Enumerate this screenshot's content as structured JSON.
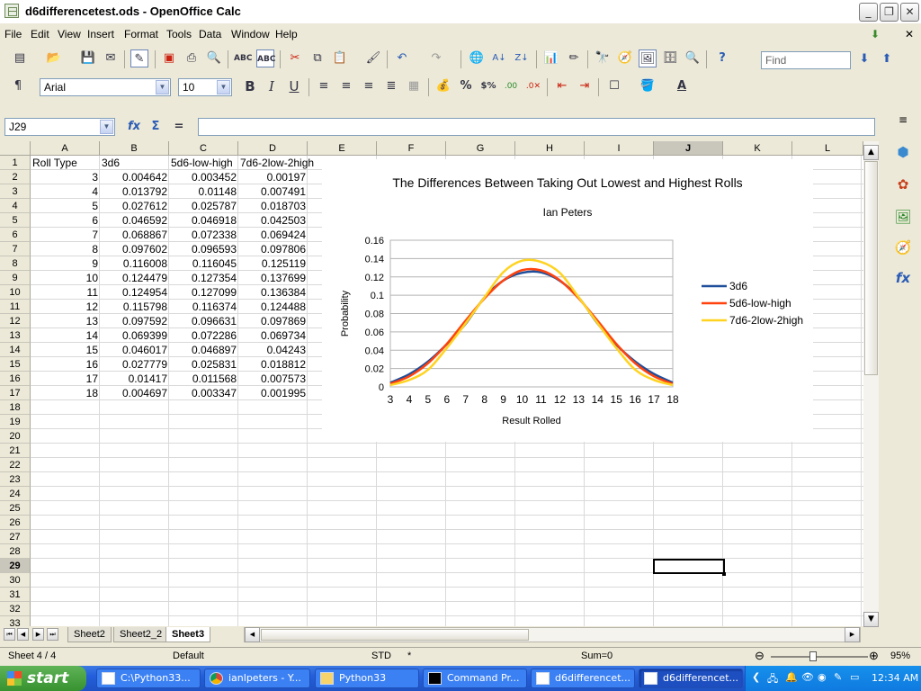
{
  "window": {
    "title": "d6differencetest.ods - OpenOffice Calc",
    "minimize": "_",
    "maximize": "❐",
    "close": "✕"
  },
  "menu": [
    "File",
    "Edit",
    "View",
    "Insert",
    "Format",
    "Tools",
    "Data",
    "Window",
    "Help"
  ],
  "toolbar": {
    "find_placeholder": "Find"
  },
  "formatting": {
    "font": "Arial",
    "size": "10"
  },
  "formula_bar": {
    "namebox": "J29",
    "fx": "fx",
    "sum": "Σ",
    "eq": "=",
    "value": ""
  },
  "columns": [
    "A",
    "B",
    "C",
    "D",
    "E",
    "F",
    "G",
    "H",
    "I",
    "J",
    "K",
    "L"
  ],
  "rows": [
    "1",
    "2",
    "3",
    "4",
    "5",
    "6",
    "7",
    "8",
    "9",
    "10",
    "11",
    "12",
    "13",
    "14",
    "15",
    "16",
    "17",
    "18",
    "19",
    "20",
    "21",
    "22",
    "23",
    "24",
    "25",
    "26",
    "27",
    "28",
    "29",
    "30",
    "31",
    "32",
    "33"
  ],
  "table": {
    "headers": [
      "Roll Type",
      "3d6",
      "5d6-low-high",
      "7d6-2low-2high"
    ],
    "rows": [
      [
        "3",
        "0.004642",
        "0.003452",
        "0.00197"
      ],
      [
        "4",
        "0.013792",
        "0.01148",
        "0.007491"
      ],
      [
        "5",
        "0.027612",
        "0.025787",
        "0.018703"
      ],
      [
        "6",
        "0.046592",
        "0.046918",
        "0.042503"
      ],
      [
        "7",
        "0.068867",
        "0.072338",
        "0.069424"
      ],
      [
        "8",
        "0.097602",
        "0.096593",
        "0.097806"
      ],
      [
        "9",
        "0.116008",
        "0.116045",
        "0.125119"
      ],
      [
        "10",
        "0.124479",
        "0.127354",
        "0.137699"
      ],
      [
        "11",
        "0.124954",
        "0.127099",
        "0.136384"
      ],
      [
        "12",
        "0.115798",
        "0.116374",
        "0.124488"
      ],
      [
        "13",
        "0.097592",
        "0.096631",
        "0.097869"
      ],
      [
        "14",
        "0.069399",
        "0.072286",
        "0.069734"
      ],
      [
        "15",
        "0.046017",
        "0.046897",
        "0.04243"
      ],
      [
        "16",
        "0.027779",
        "0.025831",
        "0.018812"
      ],
      [
        "17",
        "0.01417",
        "0.011568",
        "0.007573"
      ],
      [
        "18",
        "0.004697",
        "0.003347",
        "0.001995"
      ]
    ]
  },
  "chart_data": {
    "type": "line",
    "title": "The Differences Between Taking Out Lowest and Highest Rolls",
    "subtitle": "Ian Peters",
    "xlabel": "Result Rolled",
    "ylabel": "Probability",
    "x": [
      3,
      4,
      5,
      6,
      7,
      8,
      9,
      10,
      11,
      12,
      13,
      14,
      15,
      16,
      17,
      18
    ],
    "ylim": [
      0,
      0.16
    ],
    "yticks": [
      "0",
      "0.02",
      "0.04",
      "0.06",
      "0.08",
      "0.1",
      "0.12",
      "0.14",
      "0.16"
    ],
    "grid": true,
    "legend": "right",
    "series": [
      {
        "name": "3d6",
        "color": "#1f4e9a",
        "values": [
          0.004642,
          0.013792,
          0.027612,
          0.046592,
          0.068867,
          0.097602,
          0.116008,
          0.124479,
          0.124954,
          0.115798,
          0.097592,
          0.069399,
          0.046017,
          0.027779,
          0.01417,
          0.004697
        ]
      },
      {
        "name": "5d6-low-high",
        "color": "#ff420e",
        "values": [
          0.003452,
          0.01148,
          0.025787,
          0.046918,
          0.072338,
          0.096593,
          0.116045,
          0.127354,
          0.127099,
          0.116374,
          0.096631,
          0.072286,
          0.046897,
          0.025831,
          0.011568,
          0.003347
        ]
      },
      {
        "name": "7d6-2low-2high",
        "color": "#ffd320",
        "values": [
          0.00197,
          0.007491,
          0.018703,
          0.042503,
          0.069424,
          0.097806,
          0.125119,
          0.137699,
          0.136384,
          0.124488,
          0.097869,
          0.069734,
          0.04243,
          0.018812,
          0.007573,
          0.001995
        ]
      }
    ]
  },
  "sheet_tabs": [
    "Sheet2",
    "Sheet2_2",
    "Sheet3"
  ],
  "status": {
    "sheet": "Sheet 4 / 4",
    "style": "Default",
    "mode": "STD",
    "mod": "*",
    "sum": "Sum=0",
    "zoom": "95%",
    "zoom_minus": "⊖",
    "zoom_plus": "⊕"
  },
  "taskbar": {
    "start": "start",
    "tasks": [
      "C:\\Python33...",
      "ianlpeters - Y...",
      "Python33",
      "Command Pr...",
      "d6differencet...",
      "d6differencet..."
    ],
    "clock": "12:34 AM"
  }
}
